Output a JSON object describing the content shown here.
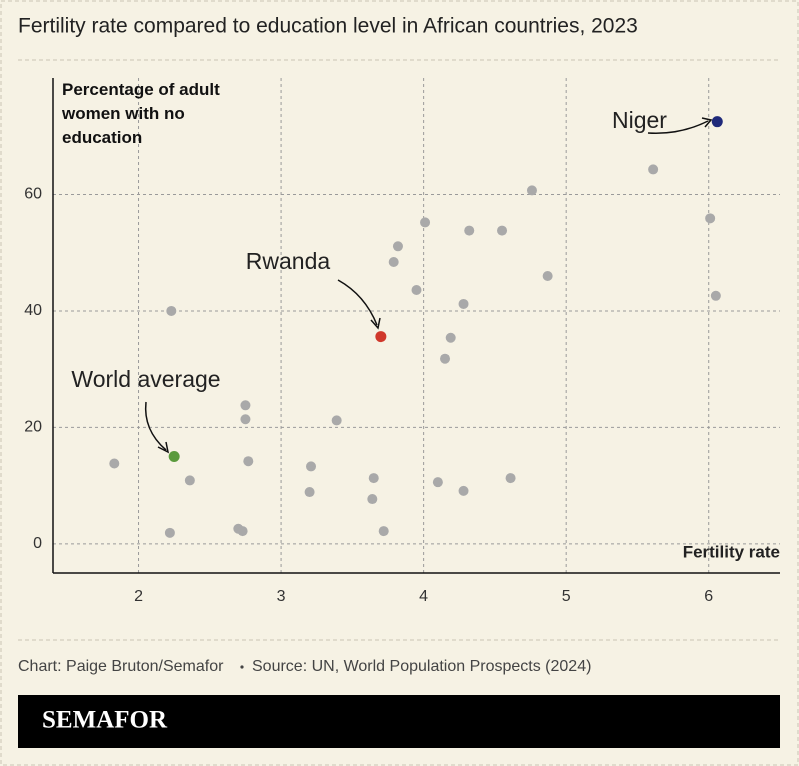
{
  "chart_data": {
    "type": "scatter",
    "title": "Fertility rate compared to education level in African countries, 2023",
    "y_label": "Percentage of adult women with no education",
    "x_label": "Fertility rate",
    "x": [
      5.61,
      4.76,
      6.01,
      4.01,
      4.32,
      4.55,
      3.82,
      3.79,
      4.87,
      3.95,
      6.05,
      4.28,
      2.23,
      4.19,
      4.15,
      2.75,
      2.75,
      3.39,
      1.83,
      2.77,
      3.21,
      2.36,
      3.65,
      4.1,
      4.61,
      3.2,
      4.28,
      3.64,
      2.7,
      2.73,
      3.72,
      2.22
    ],
    "values": [
      64.3,
      60.7,
      55.9,
      55.2,
      53.8,
      53.8,
      51.1,
      48.4,
      46.0,
      43.6,
      42.6,
      41.2,
      40.0,
      35.4,
      31.8,
      23.8,
      21.4,
      21.2,
      13.8,
      14.2,
      13.3,
      10.9,
      11.3,
      10.6,
      11.3,
      8.9,
      9.1,
      7.7,
      2.6,
      2.2,
      2.2,
      1.9
    ],
    "color": "#a9a9a9",
    "highlights": [
      {
        "label": "Niger",
        "x": 6.06,
        "y": 72.5,
        "color": "#1f2a7a"
      },
      {
        "label": "Rwanda",
        "x": 3.7,
        "y": 35.6,
        "color": "#d0382b"
      },
      {
        "label": "World average",
        "x": 2.25,
        "y": 15.0,
        "color": "#5a9a3c"
      }
    ],
    "xlim": [
      1.4,
      6.5
    ],
    "ylim": [
      -5,
      80
    ],
    "xticks": [
      2,
      3,
      4,
      5,
      6
    ],
    "yticks": [
      0,
      20,
      40,
      60
    ],
    "grid": true,
    "credit": "Chart: Paige Bruton/Semafor",
    "source": "Source: UN, World Population Prospects (2024)",
    "brand": "SEMAFOR"
  }
}
